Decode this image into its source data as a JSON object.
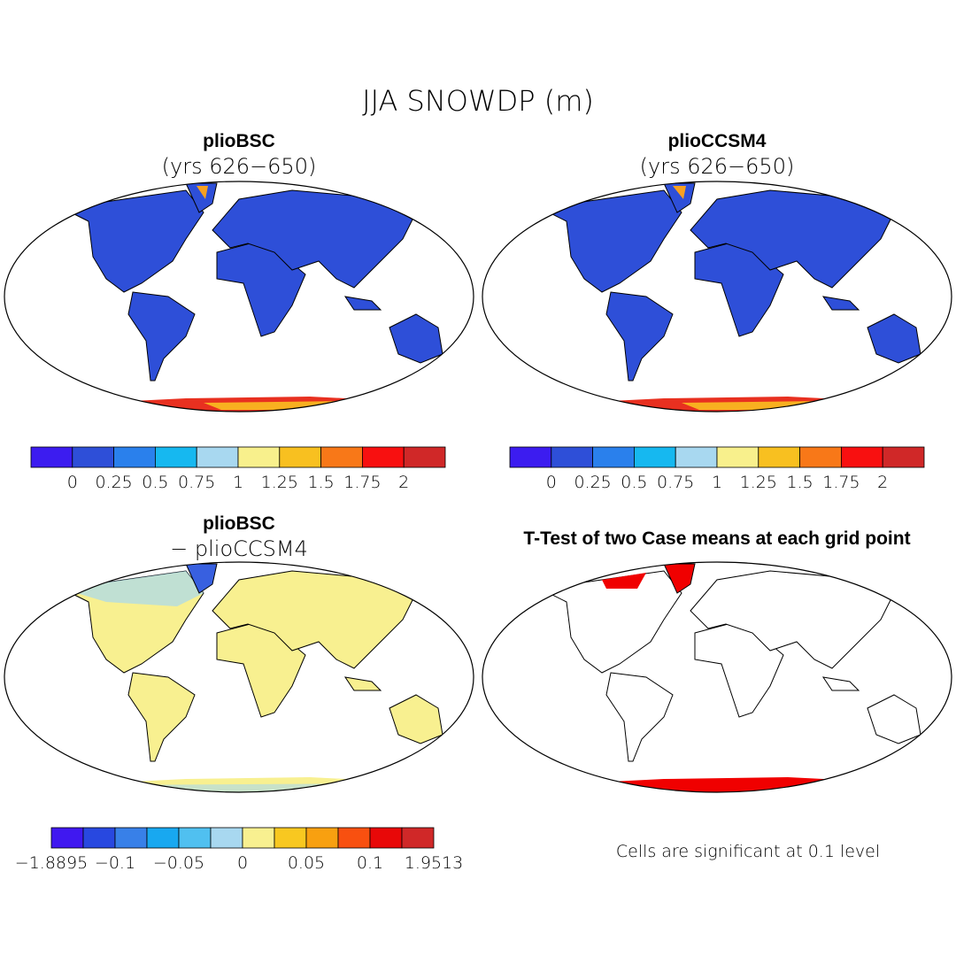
{
  "title": "JJA SNOWDP (m)",
  "panels": [
    {
      "title": "plioBSC",
      "subtitle": "(yrs 626−650)",
      "colorbar_labels": [
        "0",
        "0.25",
        "0.5",
        "0.75",
        "1",
        "1.25",
        "1.5",
        "1.75",
        "2"
      ]
    },
    {
      "title": "plioCCSM4",
      "subtitle": "(yrs 626−650)",
      "colorbar_labels": [
        "0",
        "0.25",
        "0.5",
        "0.75",
        "1",
        "1.25",
        "1.5",
        "1.75",
        "2"
      ]
    },
    {
      "title": "plioBSC",
      "subtitle": "− plioCCSM4",
      "colorbar_labels": [
        "−1.8895",
        "−0.1",
        "−0.05",
        "0",
        "0.05",
        "0.1",
        "1.9513"
      ]
    },
    {
      "title": "T-Test of two Case means at each grid point",
      "note": "Cells are significant at 0.1 level"
    }
  ]
}
